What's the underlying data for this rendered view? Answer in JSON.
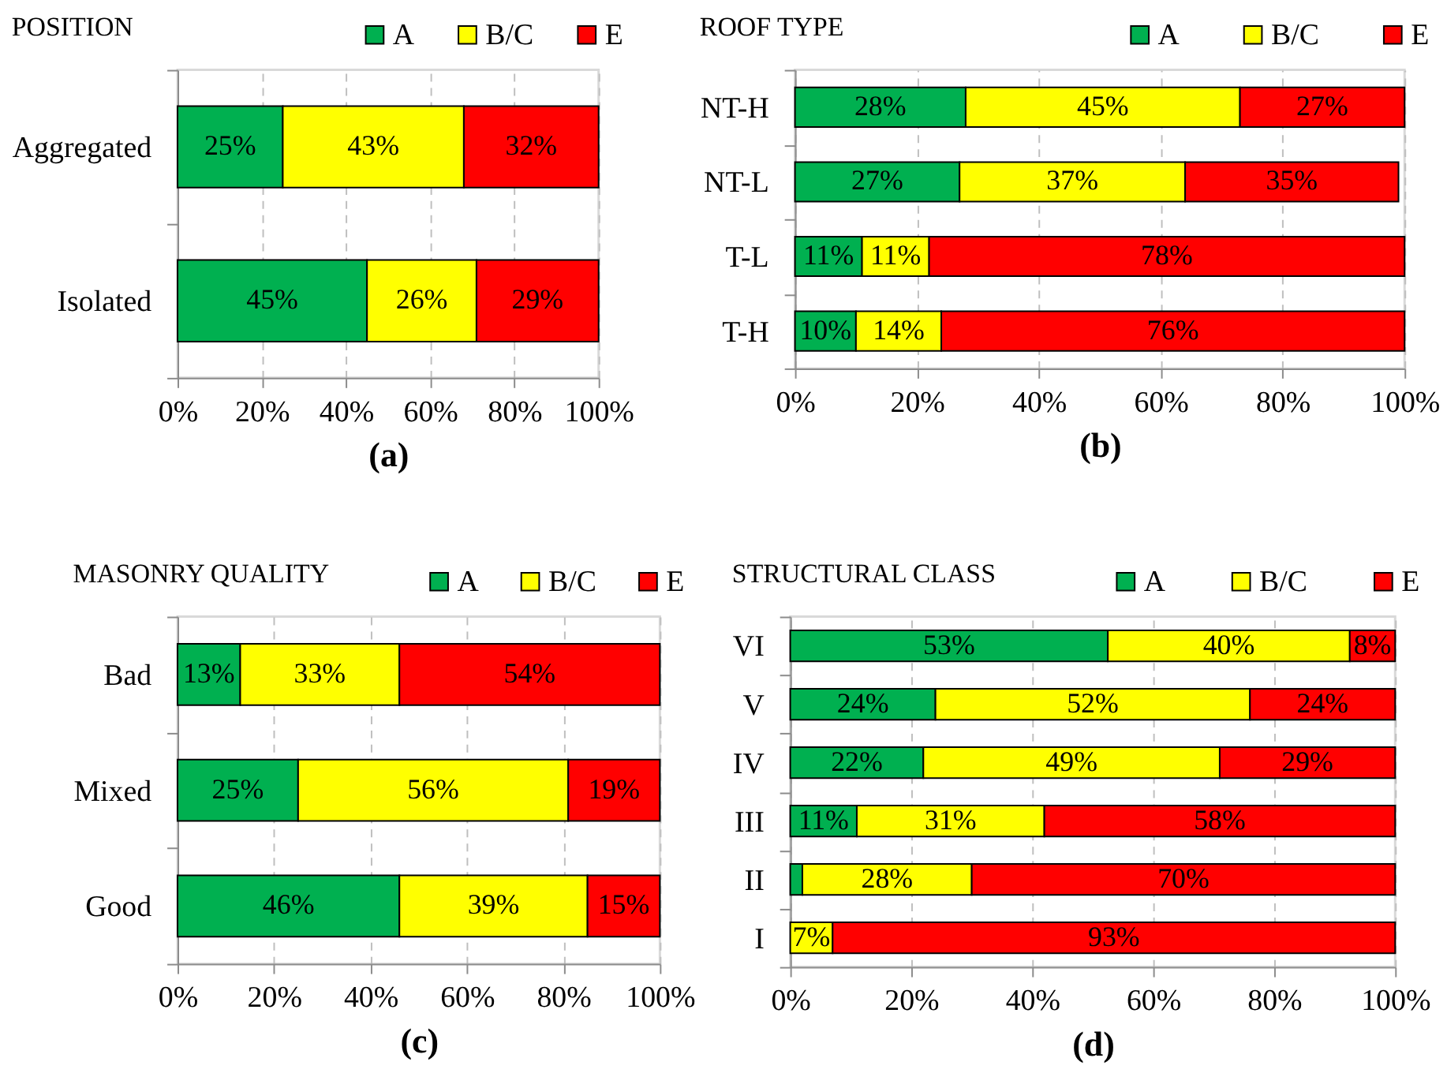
{
  "chart_data": [
    {
      "type": "bar",
      "orientation": "horizontal",
      "stacked": true,
      "title": "POSITION",
      "xlabel": "(a)",
      "categories": [
        "Aggregated",
        "Isolated"
      ],
      "series": [
        {
          "name": "A",
          "color": "#00b050",
          "values": [
            25,
            45
          ],
          "value_labels": [
            "25%",
            "45%"
          ]
        },
        {
          "name": "B/C",
          "color": "#ffff00",
          "values": [
            43,
            26
          ],
          "value_labels": [
            "43%",
            "26%"
          ]
        },
        {
          "name": "E",
          "color": "#ff0000",
          "values": [
            32,
            29
          ],
          "value_labels": [
            "32%",
            "29%"
          ]
        }
      ],
      "xlim": [
        0,
        100
      ],
      "xticks": [
        {
          "value": 0,
          "label": "0%"
        },
        {
          "value": 20,
          "label": "20%"
        },
        {
          "value": 40,
          "label": "40%"
        },
        {
          "value": 60,
          "label": "60%"
        },
        {
          "value": 80,
          "label": "80%"
        },
        {
          "value": 100,
          "label": "100%"
        }
      ],
      "grid": "x",
      "legend": "top right"
    },
    {
      "type": "bar",
      "orientation": "horizontal",
      "stacked": true,
      "title": "ROOF TYPE",
      "xlabel": "(b)",
      "categories": [
        "NT-H",
        "NT-L",
        "T-L",
        "T-H"
      ],
      "series": [
        {
          "name": "A",
          "color": "#00b050",
          "values": [
            28,
            27,
            11,
            10
          ],
          "value_labels": [
            "28%",
            "27%",
            "11%",
            "10%"
          ]
        },
        {
          "name": "B/C",
          "color": "#ffff00",
          "values": [
            45,
            37,
            11,
            14
          ],
          "value_labels": [
            "45%",
            "37%",
            "11%",
            "14%"
          ]
        },
        {
          "name": "E",
          "color": "#ff0000",
          "values": [
            27,
            35,
            78,
            76
          ],
          "value_labels": [
            "27%",
            "35%",
            "78%",
            "76%"
          ]
        }
      ],
      "xlim": [
        0,
        100
      ],
      "xticks": [
        {
          "value": 0,
          "label": "0%"
        },
        {
          "value": 20,
          "label": "20%"
        },
        {
          "value": 40,
          "label": "40%"
        },
        {
          "value": 60,
          "label": "60%"
        },
        {
          "value": 80,
          "label": "80%"
        },
        {
          "value": 100,
          "label": "100%"
        }
      ],
      "grid": "x",
      "legend": "top right"
    },
    {
      "type": "bar",
      "orientation": "horizontal",
      "stacked": true,
      "title": "MASONRY QUALITY",
      "xlabel": "(c)",
      "categories": [
        "Bad",
        "Mixed",
        "Good"
      ],
      "series": [
        {
          "name": "A",
          "color": "#00b050",
          "values": [
            13,
            25,
            46
          ],
          "value_labels": [
            "13%",
            "25%",
            "46%"
          ]
        },
        {
          "name": "B/C",
          "color": "#ffff00",
          "values": [
            33,
            56,
            39
          ],
          "value_labels": [
            "33%",
            "56%",
            "39%"
          ]
        },
        {
          "name": "E",
          "color": "#ff0000",
          "values": [
            54,
            19,
            15
          ],
          "value_labels": [
            "54%",
            "19%",
            "15%"
          ]
        }
      ],
      "xlim": [
        0,
        100
      ],
      "xticks": [
        {
          "value": 0,
          "label": "0%"
        },
        {
          "value": 20,
          "label": "20%"
        },
        {
          "value": 40,
          "label": "40%"
        },
        {
          "value": 60,
          "label": "60%"
        },
        {
          "value": 80,
          "label": "80%"
        },
        {
          "value": 100,
          "label": "100%"
        }
      ],
      "grid": "x",
      "legend": "top right"
    },
    {
      "type": "bar",
      "orientation": "horizontal",
      "stacked": true,
      "title": "STRUCTURAL CLASS",
      "xlabel": "(d)",
      "categories": [
        "VI",
        "V",
        "IV",
        "III",
        "II",
        "I"
      ],
      "series": [
        {
          "name": "A",
          "color": "#00b050",
          "values": [
            52.5,
            24,
            22,
            11,
            2,
            0
          ],
          "value_labels": [
            "53%",
            "24%",
            "22%",
            "11%",
            null,
            null
          ]
        },
        {
          "name": "B/C",
          "color": "#ffff00",
          "values": [
            40,
            52,
            49,
            31,
            28,
            7
          ],
          "value_labels": [
            "40%",
            "52%",
            "49%",
            "31%",
            "28%",
            "7%"
          ]
        },
        {
          "name": "E",
          "color": "#ff0000",
          "values": [
            7.5,
            24,
            29,
            58,
            70,
            93
          ],
          "value_labels": [
            "8%",
            "24%",
            "29%",
            "58%",
            "70%",
            "93%"
          ]
        }
      ],
      "xlim": [
        0,
        100
      ],
      "xticks": [
        {
          "value": 0,
          "label": "0%"
        },
        {
          "value": 20,
          "label": "20%"
        },
        {
          "value": 40,
          "label": "40%"
        },
        {
          "value": 60,
          "label": "60%"
        },
        {
          "value": 80,
          "label": "80%"
        },
        {
          "value": 100,
          "label": "100%"
        }
      ],
      "grid": "x",
      "legend": "top right"
    }
  ]
}
